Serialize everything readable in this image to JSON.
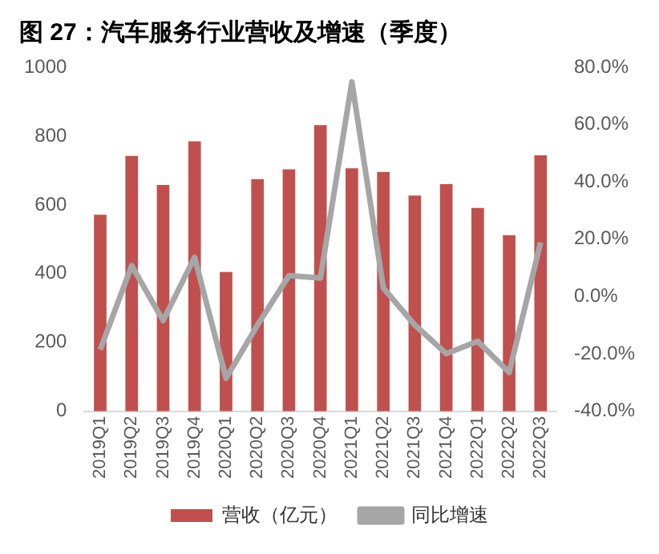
{
  "chart_data": {
    "type": "bar",
    "title": "图 27：汽车服务行业营收及增速（季度）",
    "categories": [
      "2019Q1",
      "2019Q2",
      "2019Q3",
      "2019Q4",
      "2020Q1",
      "2020Q2",
      "2020Q3",
      "2020Q4",
      "2021Q1",
      "2021Q2",
      "2021Q3",
      "2021Q4",
      "2022Q1",
      "2022Q2",
      "2022Q3"
    ],
    "series": [
      {
        "name": "营收（亿元）",
        "color": "#c0504d",
        "values": [
          571,
          742,
          658,
          785,
          405,
          675,
          703,
          832,
          706,
          696,
          627,
          660,
          591,
          512,
          744
        ]
      },
      {
        "name": "同比增速",
        "type": "line",
        "axis": "y2",
        "color": "#a6a6a6",
        "values": [
          -18.5,
          10.8,
          -8.4,
          13.7,
          -28.5,
          -9.9,
          7.3,
          6.5,
          74.9,
          3.0,
          -9.9,
          -19.9,
          -15.6,
          -26.5,
          18.9
        ]
      }
    ],
    "ylim": [
      0,
      1000
    ],
    "yticks": [
      0,
      200,
      400,
      600,
      800,
      1000
    ],
    "y2lim": [
      -40,
      80
    ],
    "y2ticks": [
      {
        "value": -40,
        "label": "-40.0%"
      },
      {
        "value": -20,
        "label": "-20.0%"
      },
      {
        "value": 0,
        "label": "0.0%"
      },
      {
        "value": 20,
        "label": "20.0%"
      },
      {
        "value": 40,
        "label": "40.0%"
      },
      {
        "value": 60,
        "label": "60.0%"
      },
      {
        "value": 80,
        "label": "80.0%"
      }
    ],
    "grid": false,
    "legend": "bottom",
    "marker": "none"
  }
}
